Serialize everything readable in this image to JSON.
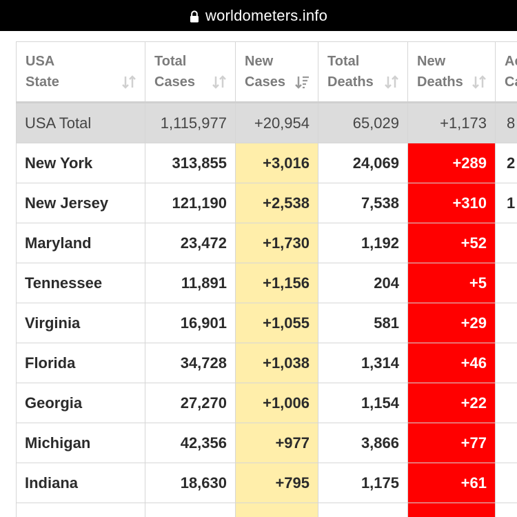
{
  "browser": {
    "url": "worldometers.info"
  },
  "table": {
    "headers": [
      {
        "line1": "USA",
        "line2": "State"
      },
      {
        "line1": "Total",
        "line2": "Cases"
      },
      {
        "line1": "New",
        "line2": "Cases"
      },
      {
        "line1": "Total",
        "line2": "Deaths"
      },
      {
        "line1": "New",
        "line2": "Deaths"
      },
      {
        "line1": "Ac",
        "line2": "Ca"
      }
    ],
    "total_row": {
      "state": "USA Total",
      "total_cases": "1,115,977",
      "new_cases": "+20,954",
      "total_deaths": "65,029",
      "new_deaths": "+1,173",
      "partial": "8"
    },
    "rows": [
      {
        "state": "New York",
        "total_cases": "313,855",
        "new_cases": "+3,016",
        "total_deaths": "24,069",
        "new_deaths": "+289",
        "partial": "2"
      },
      {
        "state": "New Jersey",
        "total_cases": "121,190",
        "new_cases": "+2,538",
        "total_deaths": "7,538",
        "new_deaths": "+310",
        "partial": "1"
      },
      {
        "state": "Maryland",
        "total_cases": "23,472",
        "new_cases": "+1,730",
        "total_deaths": "1,192",
        "new_deaths": "+52",
        "partial": ""
      },
      {
        "state": "Tennessee",
        "total_cases": "11,891",
        "new_cases": "+1,156",
        "total_deaths": "204",
        "new_deaths": "+5",
        "partial": ""
      },
      {
        "state": "Virginia",
        "total_cases": "16,901",
        "new_cases": "+1,055",
        "total_deaths": "581",
        "new_deaths": "+29",
        "partial": ""
      },
      {
        "state": "Florida",
        "total_cases": "34,728",
        "new_cases": "+1,038",
        "total_deaths": "1,314",
        "new_deaths": "+46",
        "partial": ""
      },
      {
        "state": "Georgia",
        "total_cases": "27,270",
        "new_cases": "+1,006",
        "total_deaths": "1,154",
        "new_deaths": "+22",
        "partial": ""
      },
      {
        "state": "Michigan",
        "total_cases": "42,356",
        "new_cases": "+977",
        "total_deaths": "3,866",
        "new_deaths": "+77",
        "partial": ""
      },
      {
        "state": "Indiana",
        "total_cases": "18,630",
        "new_cases": "+795",
        "total_deaths": "1,175",
        "new_deaths": "+61",
        "partial": ""
      }
    ]
  },
  "colors": {
    "new_cases_highlight": "#ffeeaa",
    "new_deaths_highlight": "#ff0000",
    "total_row_bg": "#dcdcdc",
    "url_bar_bg": "#000000"
  },
  "icons": {
    "lock": "lock-icon",
    "sort": "sort-arrows-icon",
    "sort_active": "sort-desc-icon"
  }
}
